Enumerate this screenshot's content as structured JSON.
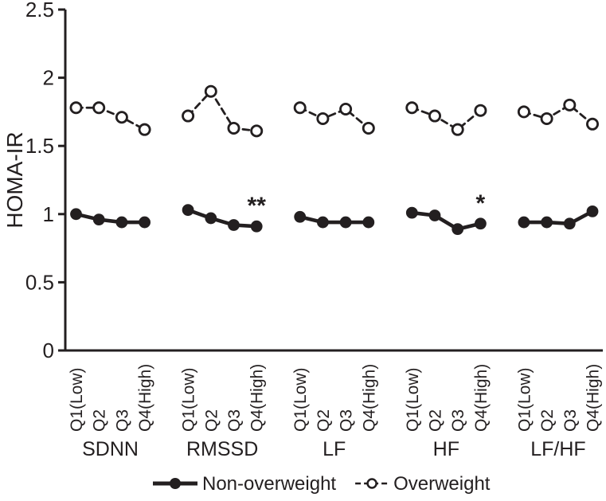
{
  "figure": {
    "ylabel": "HOMA-IR"
  },
  "chart_data": {
    "type": "line",
    "title": "",
    "xlabel": "",
    "ylabel": "HOMA-IR",
    "ylim": [
      0,
      2.5
    ],
    "yticks": [
      0,
      0.5,
      1,
      1.5,
      2,
      2.5
    ],
    "ytick_labels": [
      "0",
      "0.5",
      "1",
      "1.5",
      "2",
      "2.5"
    ],
    "grid": false,
    "legend_position": "bottom",
    "ink_color": "#231f20",
    "background": "#ffffff",
    "groups": [
      "SDNN",
      "RMSSD",
      "LF",
      "HF",
      "LF/HF"
    ],
    "categories": [
      "Q1(Low)",
      "Q2",
      "Q3",
      "Q4(High)"
    ],
    "series": [
      {
        "name": "Non-overweight",
        "line": "solid",
        "marker": "filled-circle",
        "values": [
          [
            1.0,
            0.96,
            0.94,
            0.94
          ],
          [
            1.03,
            0.97,
            0.92,
            0.91
          ],
          [
            0.98,
            0.94,
            0.94,
            0.94
          ],
          [
            1.01,
            0.99,
            0.89,
            0.93
          ],
          [
            0.94,
            0.94,
            0.93,
            1.02
          ]
        ]
      },
      {
        "name": "Overweight",
        "line": "dashed",
        "marker": "open-circle",
        "values": [
          [
            1.78,
            1.78,
            1.71,
            1.62
          ],
          [
            1.72,
            1.9,
            1.63,
            1.61
          ],
          [
            1.78,
            1.7,
            1.77,
            1.63
          ],
          [
            1.78,
            1.72,
            1.62,
            1.76
          ],
          [
            1.75,
            1.7,
            1.8,
            1.66
          ]
        ]
      }
    ],
    "annotations": [
      {
        "text": "**",
        "group": "RMSSD",
        "category": "Q4(High)",
        "series": "Non-overweight"
      },
      {
        "text": "*",
        "group": "HF",
        "category": "Q4(High)",
        "series": "Non-overweight"
      }
    ]
  }
}
